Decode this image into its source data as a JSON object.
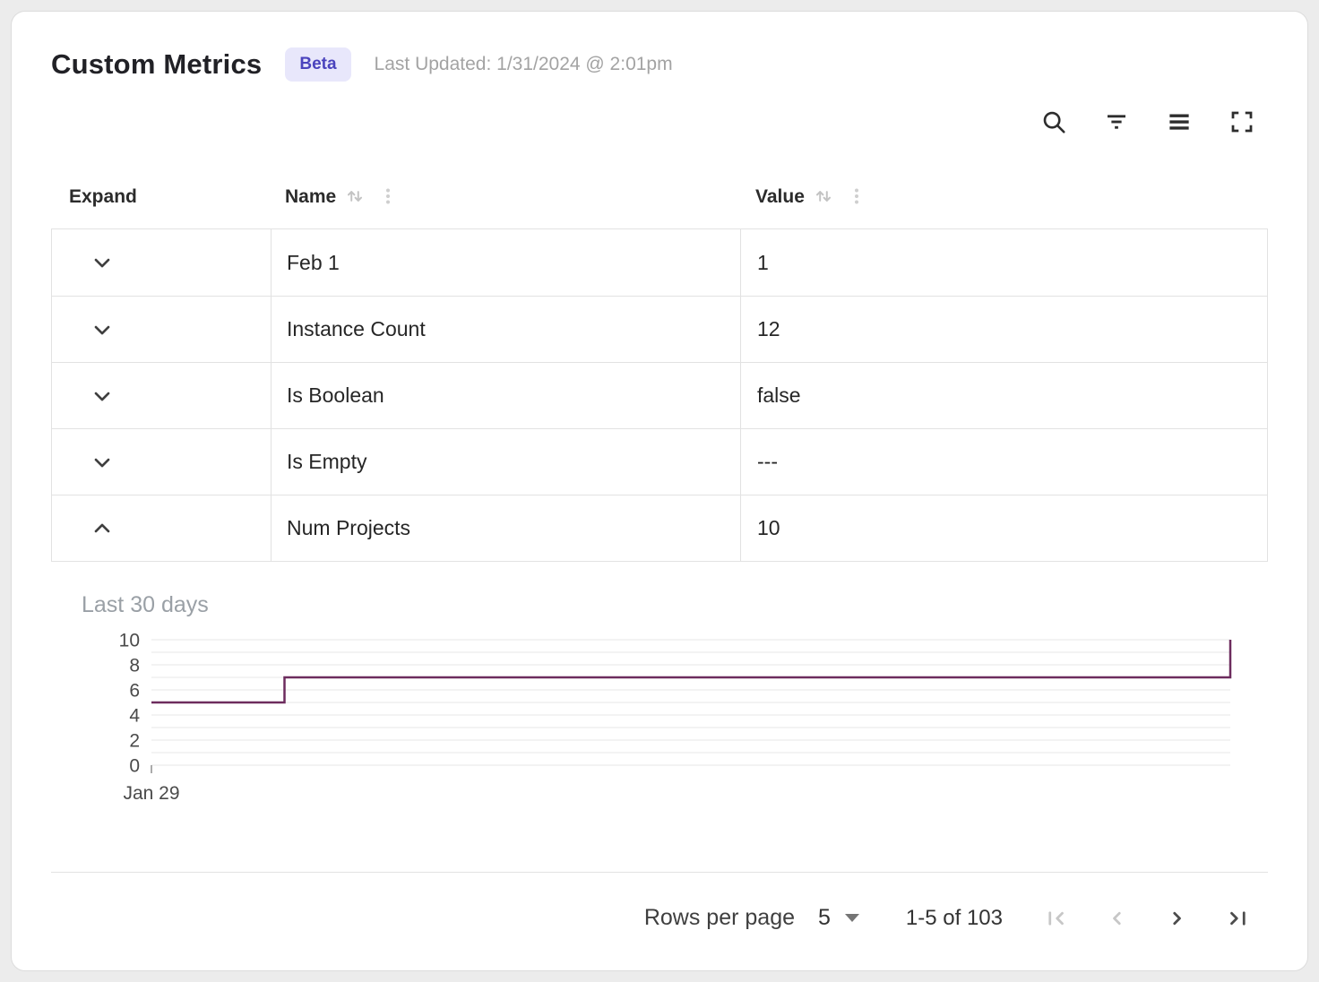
{
  "header": {
    "title": "Custom Metrics",
    "badge": "Beta",
    "last_updated": "Last Updated: 1/31/2024 @ 2:01pm"
  },
  "toolbar": {
    "icons": [
      "search-icon",
      "filter-icon",
      "density-icon",
      "fullscreen-icon"
    ]
  },
  "table": {
    "columns": [
      {
        "label": "Expand",
        "sortable": false
      },
      {
        "label": "Name",
        "sortable": true
      },
      {
        "label": "Value",
        "sortable": true
      }
    ],
    "rows": [
      {
        "name": "Feb 1",
        "value": "1",
        "expanded": false
      },
      {
        "name": "Instance Count",
        "value": "12",
        "expanded": false
      },
      {
        "name": "Is Boolean",
        "value": "false",
        "expanded": false
      },
      {
        "name": "Is Empty",
        "value": "---",
        "expanded": false
      },
      {
        "name": "Num Projects",
        "value": "10",
        "expanded": true
      }
    ]
  },
  "chart_data": {
    "type": "line",
    "title": "Last 30 days",
    "series": [
      {
        "name": "Num Projects",
        "points": [
          {
            "x": 0,
            "y": 5
          },
          {
            "x": 3.7,
            "y": 5
          },
          {
            "x": 3.7,
            "y": 7
          },
          {
            "x": 30,
            "y": 7
          },
          {
            "x": 30,
            "y": 10
          }
        ]
      }
    ],
    "xlim": [
      0,
      30
    ],
    "ylim": [
      0,
      10
    ],
    "y_ticks": [
      0,
      2,
      4,
      6,
      8,
      10
    ],
    "x_ticks": [
      {
        "pos": 0,
        "label": "Jan 29"
      }
    ],
    "grid": true,
    "legend": false,
    "line_color": "#6d2c5e",
    "grid_color": "#e7e7e7"
  },
  "pagination": {
    "rows_per_page_label": "Rows per page",
    "rows_per_page_value": "5",
    "range_label": "1-5 of 103",
    "nav_icons": [
      "first-page-icon",
      "previous-page-icon",
      "next-page-icon",
      "last-page-icon"
    ]
  },
  "colors": {
    "badge_bg": "#e8e7fb",
    "badge_text": "#4a43bd",
    "chart_line": "#6d2c5e"
  }
}
